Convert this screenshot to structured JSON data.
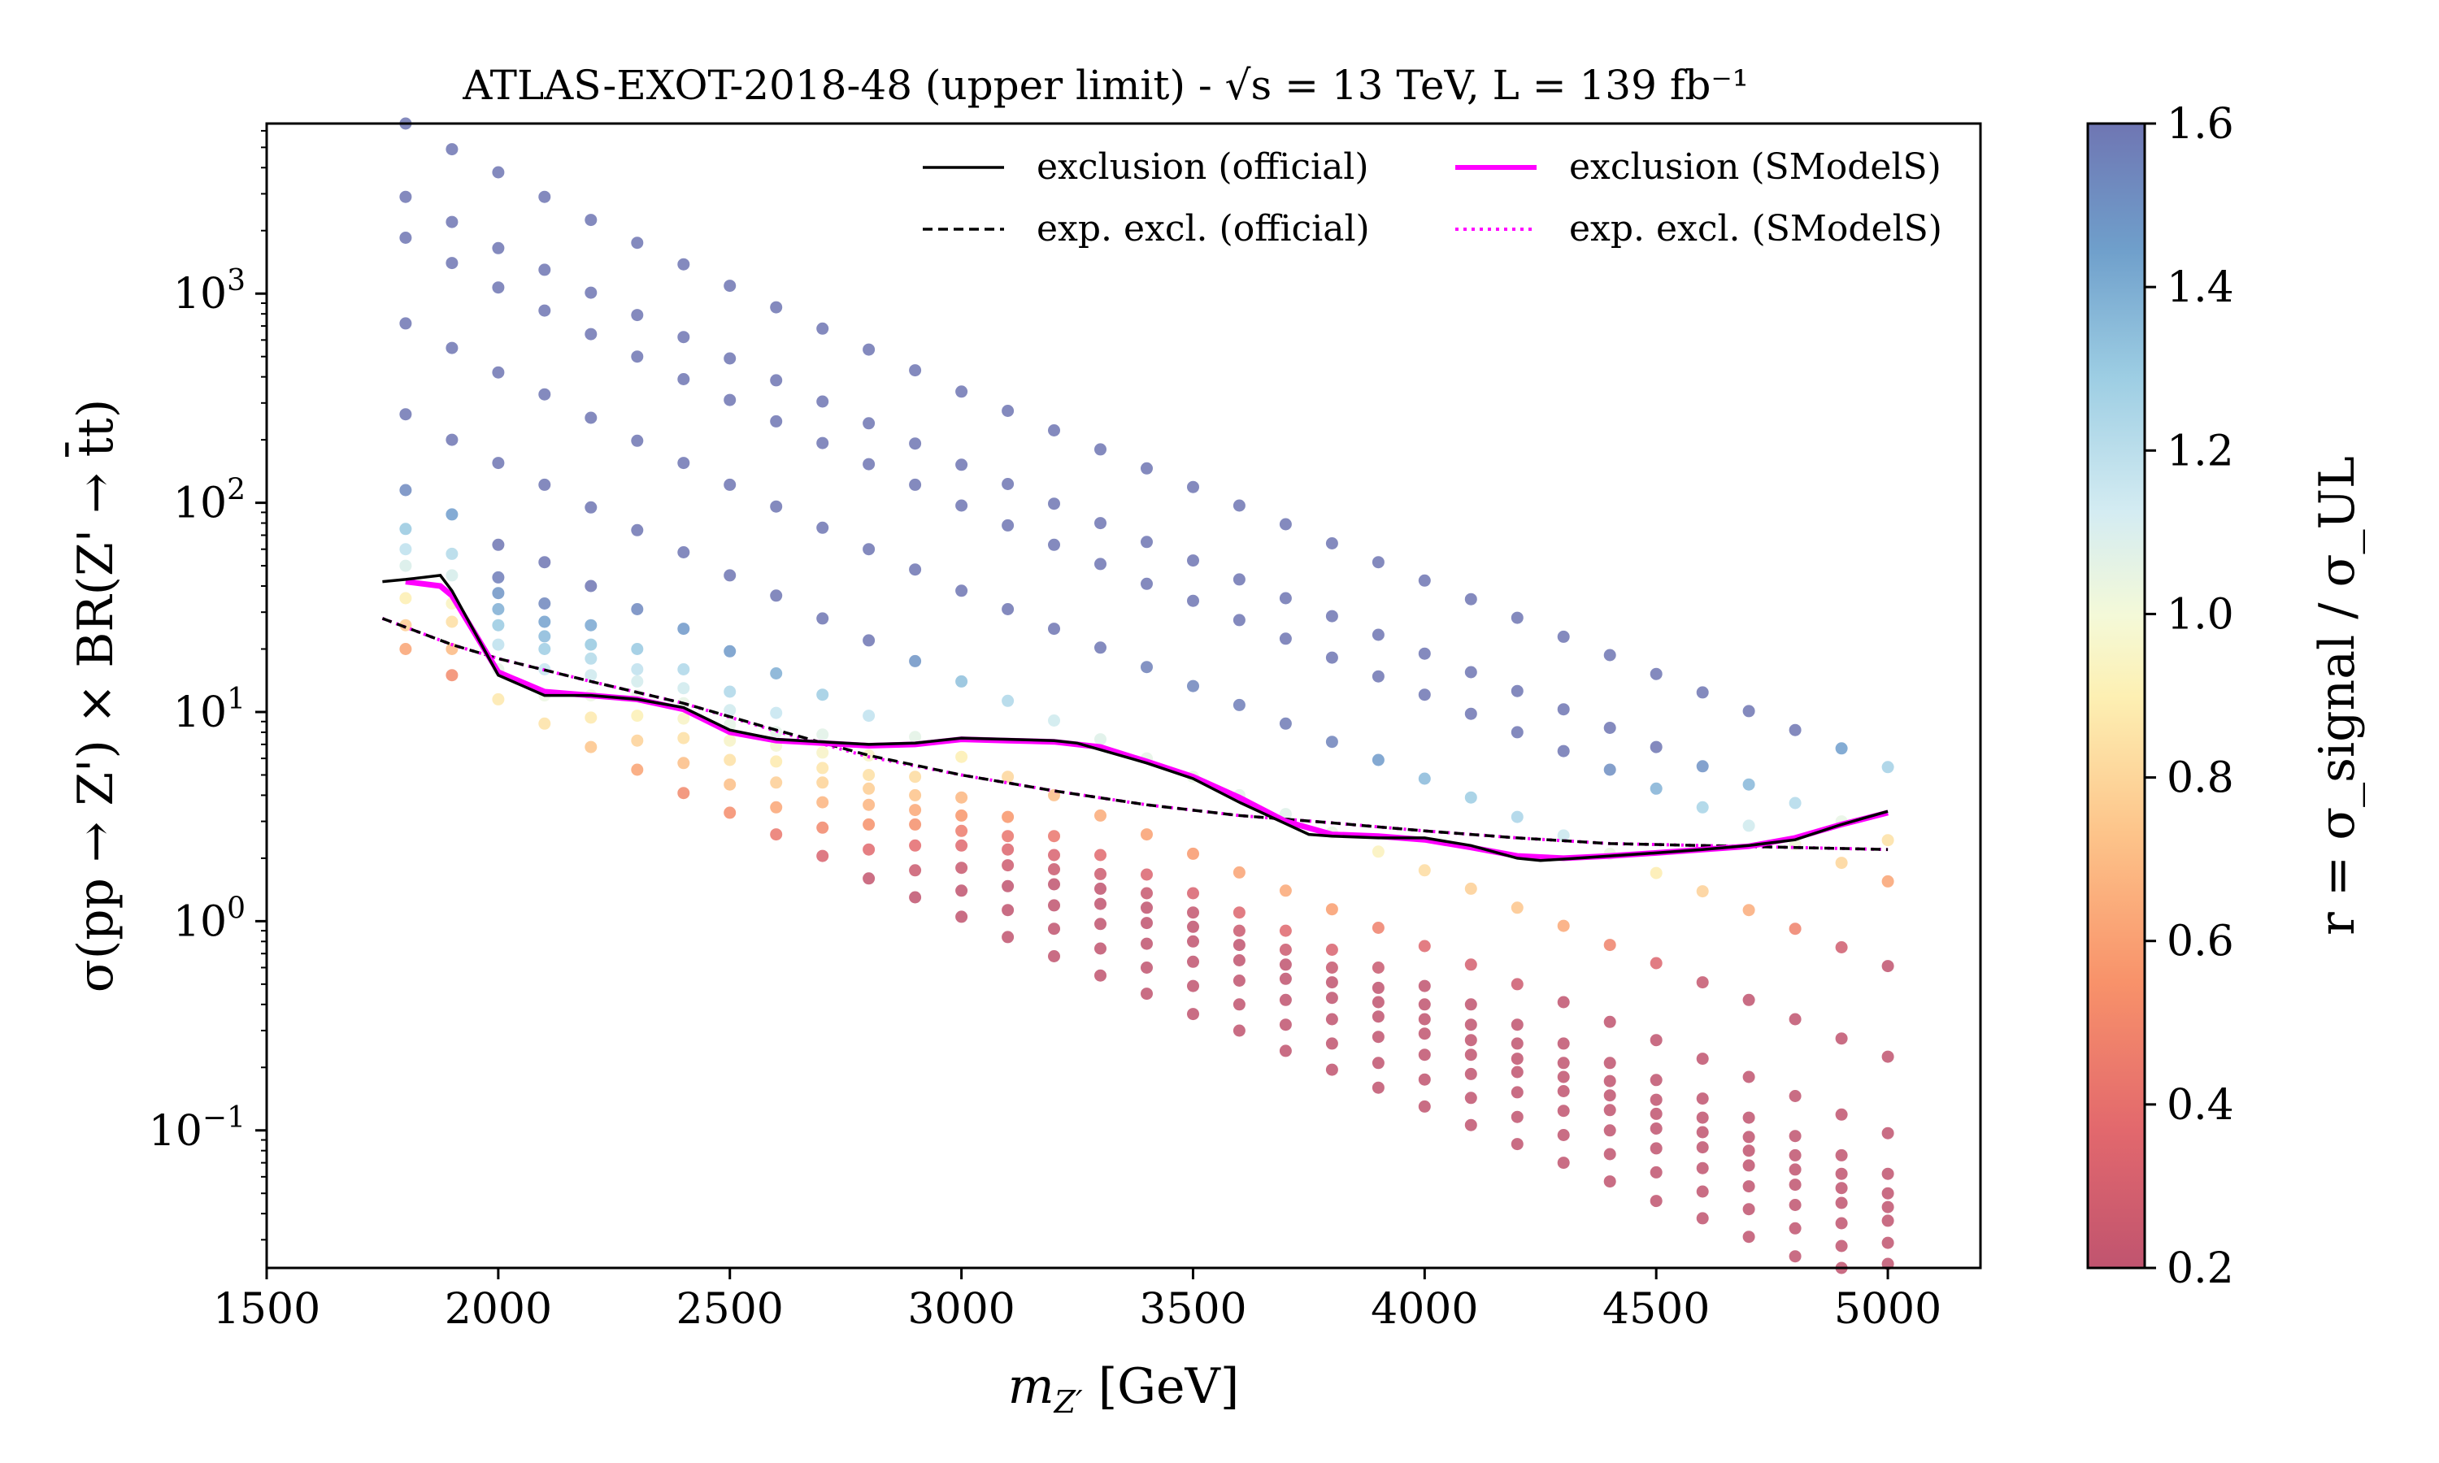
{
  "chart_data": {
    "type": "scatter",
    "title": "ATLAS-EXOT-2018-48 (upper limit) - √s = 13 TeV, L = 139 fb⁻¹",
    "xlabel": "m_{Z'} [GeV]",
    "ylabel": "σ(pp → Z') × BR(Z' → t̄t)",
    "xlim": [
      1500,
      5200
    ],
    "ylim": [
      0.022,
      6500
    ],
    "yscale": "log",
    "x_ticks": [
      1500,
      2000,
      2500,
      3000,
      3500,
      4000,
      4500,
      5000
    ],
    "x_tick_labels": [
      "1500",
      "2000",
      "2500",
      "3000",
      "3500",
      "4000",
      "4500",
      "5000"
    ],
    "y_ticks": [
      0.1,
      1,
      10,
      100,
      1000
    ],
    "y_tick_labels": [
      {
        "base": "10",
        "exp": "−1"
      },
      {
        "base": "10",
        "exp": "0"
      },
      {
        "base": "10",
        "exp": "1"
      },
      {
        "base": "10",
        "exp": "2"
      },
      {
        "base": "10",
        "exp": "3"
      }
    ],
    "grid": false,
    "legend_position": "top-right",
    "legend": [
      {
        "label": "exclusion (official)",
        "color": "#000000",
        "style": "solid"
      },
      {
        "label": "exp. excl. (official)",
        "color": "#000000",
        "style": "dashed"
      },
      {
        "label": "exclusion (SModelS)",
        "color": "#ff00ff",
        "style": "solid"
      },
      {
        "label": "exp. excl. (SModelS)",
        "color": "#ff00ff",
        "style": "dotted"
      }
    ],
    "colorbar": {
      "label": "r = σ_signal / σ_UL",
      "range": [
        0.2,
        1.6
      ],
      "ticks": [
        "0.2",
        "0.4",
        "0.6",
        "0.8",
        "1.0",
        "1.2",
        "1.4",
        "1.6"
      ],
      "colormap": [
        "#9e0142",
        "#d53e4f",
        "#f46d43",
        "#fdae61",
        "#fee08b",
        "#ffffbf",
        "#e6f598",
        "#abdda4",
        "#66c2a5",
        "#3288bd",
        "#5e4fa2"
      ],
      "colormap_note": "reversed Spectral-like: low r red, high r purple-blue"
    },
    "lines": {
      "exclusion_official": {
        "x": [
          1750,
          1800,
          1875,
          1900,
          2000,
          2100,
          2200,
          2300,
          2400,
          2500,
          2600,
          2700,
          2800,
          2900,
          3000,
          3100,
          3200,
          3250,
          3300,
          3400,
          3500,
          3600,
          3750,
          3800,
          3900,
          4000,
          4100,
          4200,
          4250,
          4300,
          4400,
          4500,
          4600,
          4700,
          4800,
          4900,
          5000
        ],
        "y": [
          42,
          43,
          45,
          38,
          15,
          12,
          12,
          11.5,
          10.5,
          8.2,
          7.4,
          7.2,
          7.0,
          7.1,
          7.5,
          7.4,
          7.3,
          7.1,
          6.6,
          5.7,
          4.8,
          3.7,
          2.6,
          2.55,
          2.5,
          2.5,
          2.3,
          2.0,
          1.95,
          1.98,
          2.05,
          2.12,
          2.2,
          2.3,
          2.45,
          2.9,
          3.35
        ]
      },
      "exclusion_smodels": {
        "x": [
          1800,
          1875,
          1900,
          2000,
          2100,
          2200,
          2300,
          2400,
          2500,
          2600,
          2700,
          2800,
          2900,
          3000,
          3100,
          3200,
          3300,
          3400,
          3500,
          3600,
          3700,
          3800,
          3900,
          4000,
          4100,
          4200,
          4300,
          4400,
          4500,
          4600,
          4700,
          4800,
          4900,
          5000
        ],
        "y": [
          42,
          40,
          36,
          15.5,
          12.5,
          12.0,
          11.5,
          10.3,
          8.0,
          7.3,
          7.1,
          6.9,
          7.0,
          7.4,
          7.3,
          7.2,
          6.8,
          5.8,
          4.9,
          3.9,
          3.0,
          2.6,
          2.55,
          2.45,
          2.25,
          2.05,
          2.0,
          2.05,
          2.12,
          2.2,
          2.28,
          2.5,
          2.9,
          3.3
        ]
      },
      "expected_official": {
        "x": [
          1750,
          1900,
          2000,
          2200,
          2400,
          2600,
          2800,
          3000,
          3200,
          3400,
          3600,
          3800,
          4000,
          4200,
          4400,
          4600,
          4800,
          5000
        ],
        "y": [
          28,
          21,
          18,
          14,
          11,
          8.2,
          6.2,
          5.0,
          4.2,
          3.6,
          3.2,
          2.95,
          2.7,
          2.5,
          2.35,
          2.3,
          2.25,
          2.2
        ]
      },
      "expected_smodels": {
        "x": [
          1750,
          1900,
          2000,
          2200,
          2400,
          2600,
          2800,
          3000,
          3200,
          3400,
          3600,
          3800,
          4000,
          4200,
          4400,
          4600,
          4800,
          5000
        ],
        "y": [
          28,
          21,
          18,
          14,
          11,
          8.1,
          6.1,
          5.0,
          4.2,
          3.6,
          3.2,
          2.95,
          2.7,
          2.5,
          2.35,
          2.3,
          2.25,
          2.2
        ]
      }
    },
    "points": {
      "description": "grid of (m, sigma) points colored by r",
      "columns": [
        {
          "x": 1800,
          "y": [
            6500,
            2900,
            1850,
            720,
            265,
            115,
            75,
            60,
            50,
            35,
            26,
            20
          ]
        },
        {
          "x": 1900,
          "y": [
            4900,
            2200,
            1400,
            550,
            200,
            88,
            57,
            45,
            33,
            27,
            20,
            15
          ]
        },
        {
          "x": 2000,
          "y": [
            3800,
            1650,
            1070,
            420,
            155,
            63,
            44,
            37,
            31,
            26,
            21,
            16,
            11.5
          ]
        },
        {
          "x": 2100,
          "y": [
            2900,
            1300,
            830,
            330,
            122,
            52,
            33,
            27,
            23,
            20,
            16,
            12,
            8.8
          ]
        },
        {
          "x": 2200,
          "y": [
            2250,
            1010,
            640,
            255,
            95,
            40,
            26,
            21,
            18,
            15,
            12,
            9.4,
            6.8
          ]
        },
        {
          "x": 2300,
          "y": [
            1750,
            790,
            500,
            198,
            74,
            31,
            20,
            16,
            14,
            12,
            9.6,
            7.3,
            5.3
          ]
        },
        {
          "x": 2400,
          "y": [
            1380,
            620,
            390,
            155,
            58,
            25,
            16,
            13,
            11,
            9.3,
            7.5,
            5.7,
            4.1
          ]
        },
        {
          "x": 2500,
          "y": [
            1090,
            490,
            310,
            122,
            45,
            19.5,
            12.5,
            10.2,
            8.7,
            7.3,
            5.9,
            4.5,
            3.3
          ]
        },
        {
          "x": 2600,
          "y": [
            860,
            385,
            245,
            96,
            36,
            15.3,
            9.9,
            8.0,
            6.9,
            5.8,
            4.6,
            3.5,
            2.6
          ]
        },
        {
          "x": 2700,
          "y": [
            680,
            305,
            193,
            76,
            28,
            12.1,
            7.8,
            6.4,
            5.4,
            4.6,
            3.7,
            2.8,
            2.05
          ]
        },
        {
          "x": 2800,
          "y": [
            540,
            240,
            153,
            60,
            22,
            9.6,
            6.2,
            5.0,
            4.3,
            3.6,
            2.9,
            2.2,
            1.6
          ]
        },
        {
          "x": 2900,
          "y": [
            430,
            192,
            122,
            48,
            17.5,
            7.6,
            4.9,
            4.0,
            3.4,
            2.9,
            2.3,
            1.75,
            1.3
          ]
        },
        {
          "x": 3000,
          "y": [
            340,
            152,
            97,
            38,
            14,
            6.1,
            3.9,
            3.2,
            2.7,
            2.3,
            1.8,
            1.4,
            1.05
          ]
        },
        {
          "x": 3100,
          "y": [
            275,
            123,
            78,
            31,
            11.3,
            4.9,
            3.15,
            2.55,
            2.2,
            1.85,
            1.47,
            1.13,
            0.84
          ]
        },
        {
          "x": 3200,
          "y": [
            222,
            99,
            63,
            25,
            9.1,
            4.0,
            2.55,
            2.07,
            1.77,
            1.5,
            1.19,
            0.92,
            0.68
          ]
        },
        {
          "x": 3300,
          "y": [
            180,
            80,
            51,
            20.3,
            7.4,
            3.2,
            2.07,
            1.68,
            1.43,
            1.21,
            0.97,
            0.74,
            0.55
          ]
        },
        {
          "x": 3400,
          "y": [
            146,
            65,
            41,
            16.4,
            6.0,
            2.6,
            1.67,
            1.36,
            1.16,
            0.98,
            0.78,
            0.6,
            0.45
          ]
        },
        {
          "x": 3500,
          "y": [
            119,
            53,
            34,
            13.3,
            4.9,
            2.1,
            1.36,
            1.1,
            0.94,
            0.8,
            0.64,
            0.49,
            0.36
          ]
        },
        {
          "x": 3600,
          "y": [
            97,
            43,
            27.5,
            10.8,
            4.0,
            1.71,
            1.1,
            0.9,
            0.77,
            0.65,
            0.52,
            0.4,
            0.3
          ]
        },
        {
          "x": 3700,
          "y": [
            79,
            35,
            22.4,
            8.8,
            3.25,
            1.4,
            0.9,
            0.73,
            0.62,
            0.53,
            0.42,
            0.32,
            0.24
          ]
        },
        {
          "x": 3800,
          "y": [
            64,
            28.7,
            18.2,
            7.2,
            2.65,
            1.14,
            0.73,
            0.6,
            0.51,
            0.43,
            0.34,
            0.26,
            0.195
          ]
        },
        {
          "x": 3900,
          "y": [
            52,
            23.4,
            14.8,
            5.9,
            2.15,
            0.93,
            0.6,
            0.48,
            0.41,
            0.35,
            0.28,
            0.21,
            0.16
          ]
        },
        {
          "x": 4000,
          "y": [
            42.5,
            19,
            12.1,
            4.8,
            1.75,
            0.76,
            0.49,
            0.4,
            0.34,
            0.29,
            0.23,
            0.175,
            0.13
          ]
        },
        {
          "x": 4100,
          "y": [
            34.6,
            15.5,
            9.8,
            3.9,
            1.43,
            0.62,
            0.4,
            0.32,
            0.27,
            0.23,
            0.186,
            0.143,
            0.106
          ]
        },
        {
          "x": 4200,
          "y": [
            28.2,
            12.6,
            8.0,
            3.15,
            1.16,
            0.5,
            0.32,
            0.26,
            0.22,
            0.19,
            0.152,
            0.116,
            0.086
          ]
        },
        {
          "x": 4300,
          "y": [
            22.9,
            10.3,
            6.5,
            2.57,
            0.95,
            0.41,
            0.26,
            0.21,
            0.18,
            0.154,
            0.124,
            0.095,
            0.07
          ]
        },
        {
          "x": 4400,
          "y": [
            18.7,
            8.4,
            5.3,
            2.1,
            0.77,
            0.33,
            0.21,
            0.172,
            0.147,
            0.125,
            0.1,
            0.077,
            0.057
          ]
        },
        {
          "x": 4500,
          "y": [
            15.2,
            6.8,
            4.3,
            1.7,
            0.63,
            0.27,
            0.174,
            0.14,
            0.12,
            0.102,
            0.082,
            0.063,
            0.046
          ]
        },
        {
          "x": 4600,
          "y": [
            12.4,
            5.5,
            3.5,
            1.39,
            0.51,
            0.22,
            0.142,
            0.115,
            0.098,
            0.083,
            0.066,
            0.051,
            0.038
          ]
        },
        {
          "x": 4700,
          "y": [
            10.1,
            4.5,
            2.86,
            1.13,
            0.42,
            0.18,
            0.115,
            0.093,
            0.08,
            0.068,
            0.054,
            0.042,
            0.031
          ]
        },
        {
          "x": 4800,
          "y": [
            8.2,
            3.67,
            2.33,
            0.92,
            0.34,
            0.146,
            0.094,
            0.076,
            0.065,
            0.055,
            0.044,
            0.034,
            0.025
          ]
        },
        {
          "x": 4900,
          "y": [
            6.7,
            3.0,
            1.9,
            0.75,
            0.275,
            0.119,
            0.076,
            0.062,
            0.053,
            0.045,
            0.036,
            0.028,
            0.022
          ]
        },
        {
          "x": 5000,
          "y": [
            5.45,
            2.44,
            1.55,
            0.61,
            0.225,
            0.097,
            0.062,
            0.05,
            0.043,
            0.037,
            0.029,
            0.023
          ]
        }
      ]
    }
  }
}
